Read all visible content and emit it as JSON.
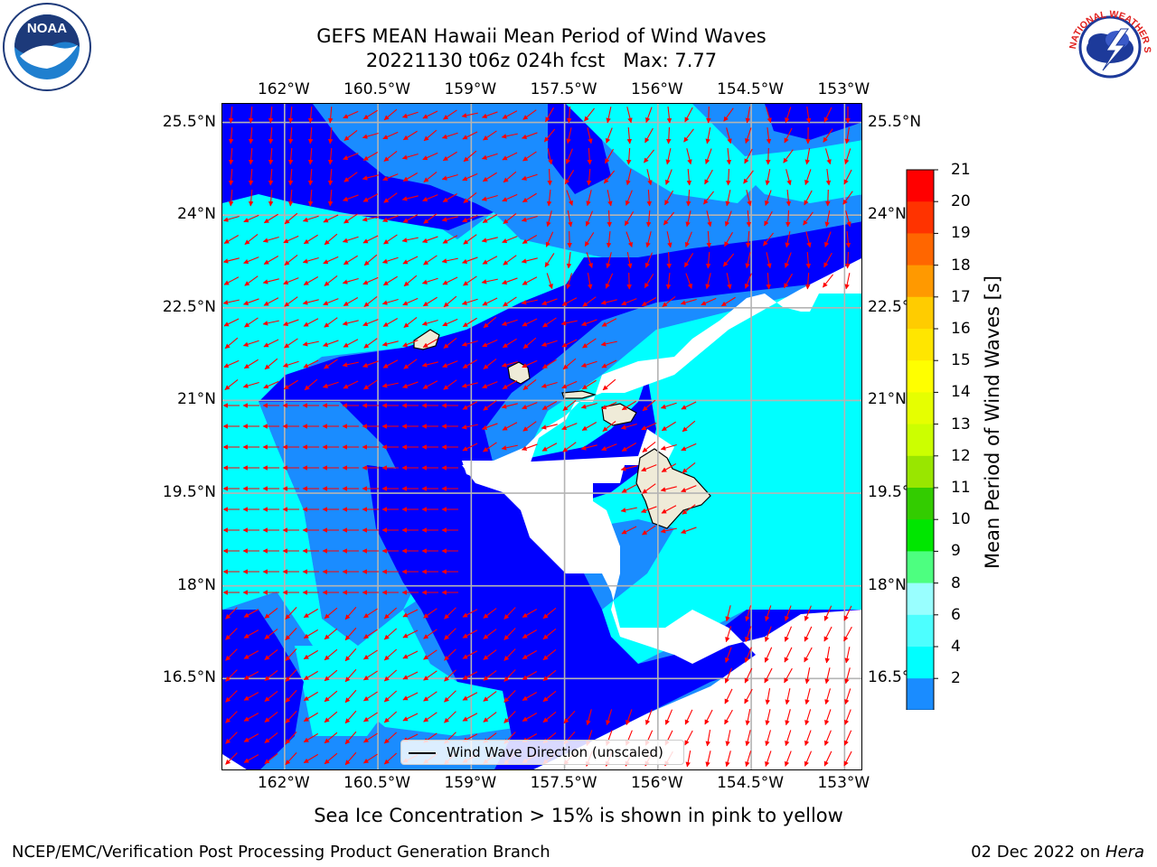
{
  "title": {
    "line1": "GEFS MEAN Hawaii Mean Period of Wind Waves",
    "line2": "20221130 t06z 024h fcst   Max: 7.77"
  },
  "map": {
    "lon_labels": [
      "162°W",
      "160.5°W",
      "159°W",
      "157.5°W",
      "156°W",
      "154.5°W",
      "153°W"
    ],
    "lat_labels": [
      "25.5°N",
      "24°N",
      "22.5°N",
      "21°N",
      "19.5°N",
      "18°N",
      "16.5°N"
    ],
    "lon_range": [
      -163.0,
      -152.7
    ],
    "lat_range": [
      15.0,
      25.8
    ],
    "colors": {
      "band_2_4": "#1a8cff",
      "band_4_6": "#00ffff",
      "band_lt_2": "#0000ff",
      "land": "#efebd8",
      "arrow": "#ff0000",
      "grid": "#b4b4b4"
    }
  },
  "legend": {
    "label": "Wind Wave Direction (unscaled)"
  },
  "colorbar": {
    "label": "Mean Period of Wind Waves [s]",
    "ticks": [
      "2",
      "4",
      "6",
      "8",
      "9",
      "10",
      "11",
      "12",
      "13",
      "14",
      "15",
      "16",
      "17",
      "18",
      "19",
      "20",
      "21"
    ],
    "colors": [
      "#1a8cff",
      "#00ffff",
      "#4dffff",
      "#99ffff",
      "#4dff80",
      "#00e600",
      "#33cc00",
      "#99e600",
      "#ccff00",
      "#e6ff00",
      "#ffff00",
      "#ffe600",
      "#ffcc00",
      "#ff9900",
      "#ff6600",
      "#ff3300",
      "#ff0000"
    ],
    "under_color": "#0000ff"
  },
  "note": "Sea Ice Concentration > 15% is shown in pink to yellow",
  "footer": {
    "left": "NCEP/EMC/Verification Post Processing Product Generation Branch",
    "date": "02 Dec 2022 on ",
    "host": "Hera"
  },
  "logos": {
    "noaa_text": "NOAA",
    "nws_text": "NATIONAL WEATHER SERVICE"
  }
}
